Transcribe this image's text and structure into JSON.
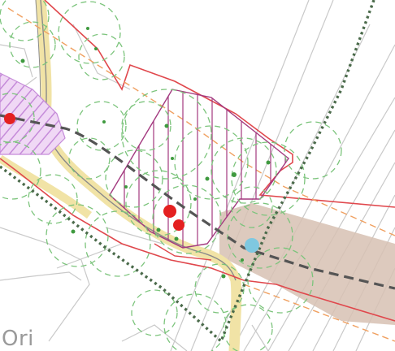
{
  "map": {
    "place_label": "Ori",
    "colors": {
      "background": "#ffffff",
      "cadastral_line": "#c9c9c9",
      "site_boundary": "#e0474c",
      "track_route": "#f1e3a6",
      "footpath": "#8a8a8a",
      "tree_canopy": "#7cc47c",
      "tree_point": "#3f9a3f",
      "hatch_area": "#a3397f",
      "purple_area": "#c58bd9",
      "dashed_alignment": "#555555",
      "dotted_boundary": "#4b6b4b",
      "brown_area": "#d7c1b3",
      "orange_dash": "#f0a060",
      "blue_marker": "#7fc8e0",
      "red_marker": "#e42020"
    },
    "legend_free": true
  }
}
